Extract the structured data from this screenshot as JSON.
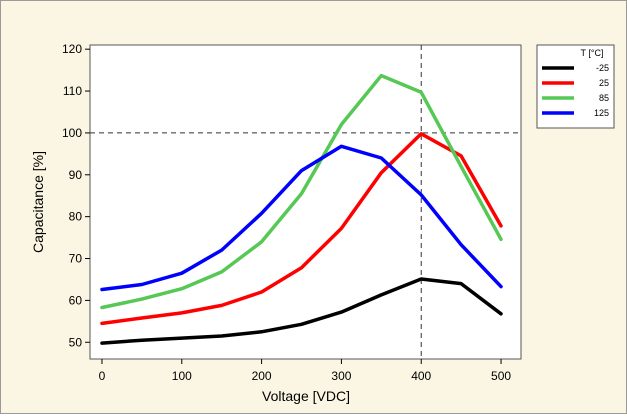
{
  "chart_data": {
    "type": "line",
    "title": "",
    "xlabel": "Voltage [VDC]",
    "ylabel": "Capacitance [%]",
    "xlim": [
      -15,
      525
    ],
    "ylim": [
      46,
      121
    ],
    "xticks": [
      0,
      100,
      200,
      300,
      400,
      500
    ],
    "yticks": [
      50,
      60,
      70,
      80,
      90,
      100,
      110,
      120
    ],
    "grid": false,
    "reference_lines": {
      "y": 100,
      "x": 400,
      "style": "dashed"
    },
    "legend": {
      "title": "T [°C]",
      "placement": "right-top"
    },
    "x": [
      0,
      50,
      100,
      150,
      200,
      250,
      300,
      350,
      400,
      450,
      500
    ],
    "series": [
      {
        "name": "-25",
        "color": "#000000",
        "values": [
          49.8,
          50.5,
          51,
          51.5,
          52.5,
          54.3,
          57.2,
          61.3,
          65.1,
          64,
          56.8
        ]
      },
      {
        "name": "25",
        "color": "#ff0000",
        "values": [
          54.5,
          55.8,
          57,
          58.8,
          62,
          67.8,
          77.2,
          90.5,
          99.8,
          94.5,
          77.8
        ]
      },
      {
        "name": "85",
        "color": "#55c855",
        "values": [
          58.3,
          60.3,
          62.8,
          66.8,
          74,
          85.5,
          102,
          113.7,
          109.7,
          92,
          74.6
        ]
      },
      {
        "name": "125",
        "color": "#0000ff",
        "values": [
          62.6,
          63.8,
          66.5,
          72,
          80.8,
          91,
          96.8,
          94,
          85.2,
          73.3,
          63.3
        ]
      }
    ]
  }
}
